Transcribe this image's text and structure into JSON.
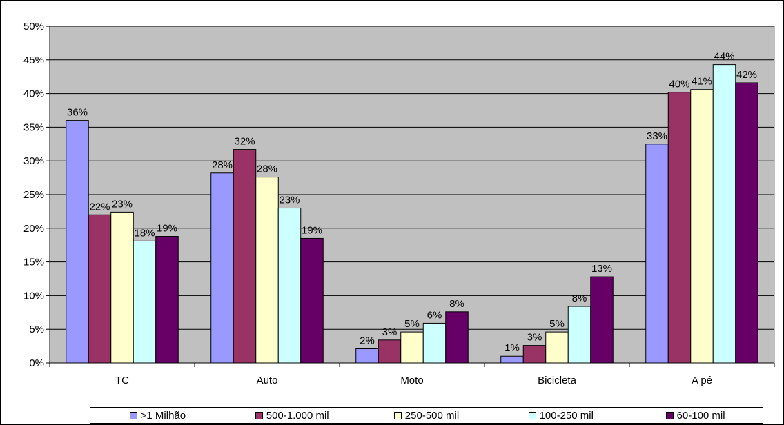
{
  "chart_data": {
    "type": "bar",
    "categories": [
      "TC",
      "Auto",
      "Moto",
      "Bicicleta",
      "A pé"
    ],
    "series": [
      {
        "name": ">1 Milhão",
        "color": "#9999ff",
        "values": [
          36,
          28,
          2,
          1,
          33
        ],
        "labels": [
          "36%",
          "28%",
          "2%",
          "1%",
          "33%"
        ],
        "heights": [
          36.0,
          28.2,
          2.1,
          1.0,
          32.5
        ]
      },
      {
        "name": "500-1.000 mil",
        "color": "#993366",
        "values": [
          22,
          32,
          3,
          3,
          40
        ],
        "labels": [
          "22%",
          "32%",
          "3%",
          "3%",
          "40%"
        ],
        "heights": [
          22.0,
          31.7,
          3.4,
          2.6,
          40.2
        ]
      },
      {
        "name": "250-500 mil",
        "color": "#ffffcc",
        "values": [
          23,
          28,
          5,
          5,
          41
        ],
        "labels": [
          "23%",
          "28%",
          "5%",
          "5%",
          "41%"
        ],
        "heights": [
          22.4,
          27.6,
          4.6,
          4.6,
          40.6
        ]
      },
      {
        "name": "100-250 mil",
        "color": "#ccffff",
        "values": [
          18,
          23,
          6,
          8,
          44
        ],
        "labels": [
          "18%",
          "23%",
          "6%",
          "8%",
          "44%"
        ],
        "heights": [
          18.1,
          23.0,
          5.9,
          8.4,
          44.3
        ]
      },
      {
        "name": "60-100 mil",
        "color": "#660066",
        "values": [
          19,
          19,
          8,
          13,
          42
        ],
        "labels": [
          "19%",
          "19%",
          "8%",
          "13%",
          "42%"
        ],
        "heights": [
          18.8,
          18.5,
          7.6,
          12.8,
          41.6
        ]
      }
    ],
    "yticks": [
      "0%",
      "5%",
      "10%",
      "15%",
      "20%",
      "25%",
      "30%",
      "35%",
      "40%",
      "45%",
      "50%"
    ],
    "ylim": [
      0,
      50
    ],
    "grid": true,
    "plot_background": "#c0c0c0",
    "legend_position": "bottom"
  }
}
